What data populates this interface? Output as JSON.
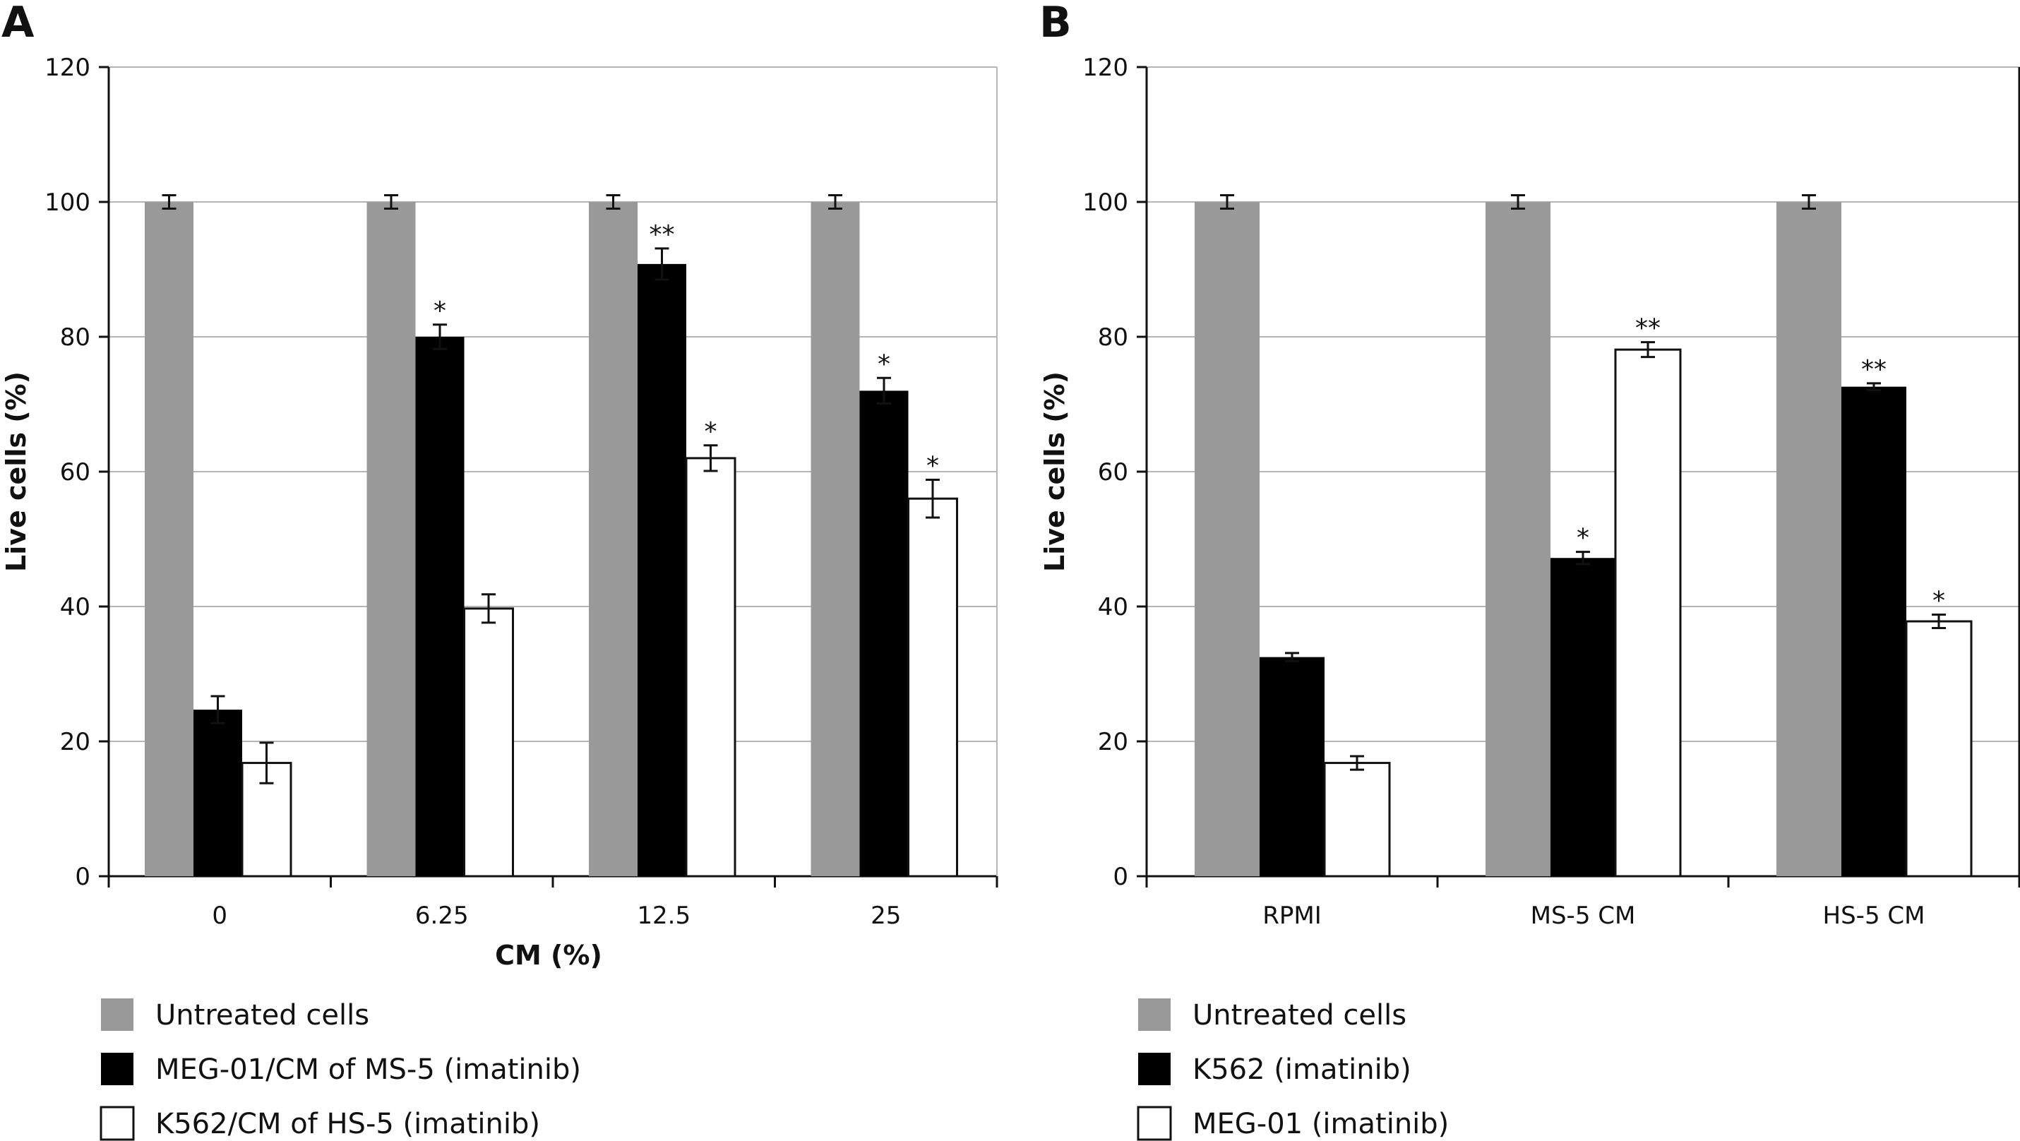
{
  "chart_data": [
    {
      "panel": "A",
      "type": "bar",
      "categories": [
        "0",
        "6.25",
        "12.5",
        "25"
      ],
      "xlabel": "CM (%)",
      "ylabel": "Live cells (%)",
      "ylim": [
        0,
        120
      ],
      "yticks": [
        0,
        20,
        40,
        60,
        80,
        100,
        120
      ],
      "grid": true,
      "series": [
        {
          "name": "Untreated cells",
          "color": "#999999",
          "values": [
            100,
            100,
            100,
            100
          ],
          "errors": [
            1,
            1,
            1,
            1
          ],
          "significance": [
            "",
            "",
            "",
            ""
          ]
        },
        {
          "name": "MEG-01/CM of MS-5 (imatinib)",
          "color": "#000000",
          "values": [
            24.7,
            80,
            90.8,
            72
          ],
          "errors": [
            2,
            1.8,
            2.3,
            1.9
          ],
          "significance": [
            "",
            "*",
            "**",
            "*"
          ]
        },
        {
          "name": "K562/CM of HS-5 (imatinib)",
          "color": "#ffffff",
          "values": [
            16.8,
            39.7,
            62,
            56
          ],
          "errors": [
            3,
            2.1,
            1.9,
            2.8
          ],
          "significance": [
            "",
            "",
            "*",
            "*"
          ]
        }
      ]
    },
    {
      "panel": "B",
      "type": "bar",
      "categories": [
        "RPMI",
        "MS-5 CM",
        "HS-5 CM"
      ],
      "xlabel": "",
      "ylabel": "Live cells (%)",
      "ylim": [
        0,
        120
      ],
      "yticks": [
        0,
        20,
        40,
        60,
        80,
        100,
        120
      ],
      "grid": true,
      "series": [
        {
          "name": "Untreated cells",
          "color": "#999999",
          "values": [
            100,
            100,
            100
          ],
          "errors": [
            1,
            1,
            1
          ],
          "significance": [
            "",
            "",
            ""
          ]
        },
        {
          "name": "K562 (imatinib)",
          "color": "#000000",
          "values": [
            32.5,
            47.2,
            72.6
          ],
          "errors": [
            0.6,
            0.9,
            0.5
          ],
          "significance": [
            "",
            "*",
            "**"
          ]
        },
        {
          "name": "MEG-01 (imatinib)",
          "color": "#ffffff",
          "values": [
            16.8,
            78.1,
            37.8
          ],
          "errors": [
            1,
            1.1,
            1
          ],
          "significance": [
            "",
            "**",
            "*"
          ]
        }
      ]
    }
  ]
}
